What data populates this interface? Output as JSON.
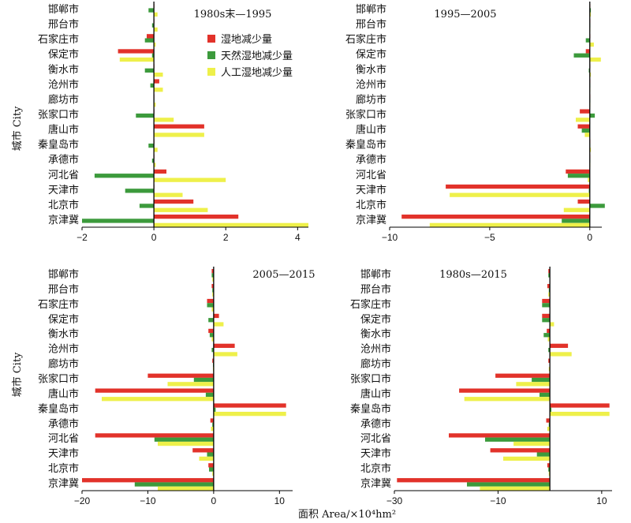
{
  "figure": {
    "ylabel": "城市 City",
    "xlabel": "面积 Area/×10⁴hm²",
    "colors": {
      "wetland": "#e2322a",
      "natural": "#3c9a3c",
      "artificial": "#eef04a"
    }
  },
  "legend": {
    "items": [
      {
        "label": "湿地减少量",
        "color": "#e2322a"
      },
      {
        "label": "天然湿地减少量",
        "color": "#3c9a3c"
      },
      {
        "label": "人工湿地减少量",
        "color": "#eef04a"
      }
    ]
  },
  "chart_data": [
    {
      "type": "bar",
      "orientation": "horizontal",
      "title": "1980s末—1995",
      "categories": [
        "邯郸市",
        "邢台市",
        "石家庄市",
        "保定市",
        "衡水市",
        "沧州市",
        "廊坊市",
        "张家口市",
        "唐山市",
        "秦皇岛市",
        "承德市",
        "河北省",
        "天津市",
        "北京市",
        "京津冀"
      ],
      "xlim": [
        -2,
        4.3
      ],
      "xticks": [
        -2,
        0,
        2,
        4
      ],
      "series": [
        {
          "name": "湿地减少量",
          "values": [
            0.0,
            0.0,
            -0.2,
            -1.0,
            0.0,
            0.15,
            0.0,
            0.0,
            1.4,
            0.0,
            0.0,
            0.35,
            0.0,
            1.1,
            2.35
          ]
        },
        {
          "name": "天然湿地减少量",
          "values": [
            -0.15,
            -0.05,
            -0.25,
            -0.05,
            -0.25,
            -0.1,
            0.0,
            -0.5,
            0.0,
            -0.15,
            -0.05,
            -1.65,
            -0.8,
            -0.4,
            -2.0
          ]
        },
        {
          "name": "人工湿地减少量",
          "values": [
            0.1,
            0.1,
            0.05,
            -0.95,
            0.25,
            0.25,
            0.05,
            0.55,
            1.4,
            0.1,
            0.05,
            2.0,
            0.8,
            1.5,
            4.3
          ]
        }
      ]
    },
    {
      "type": "bar",
      "orientation": "horizontal",
      "title": "1995—2005",
      "categories": [
        "邯郸市",
        "邢台市",
        "石家庄市",
        "保定市",
        "衡水市",
        "沧州市",
        "廊坊市",
        "张家口市",
        "唐山市",
        "秦皇岛市",
        "承德市",
        "河北省",
        "天津市",
        "北京市",
        "京津冀"
      ],
      "xlim": [
        -10,
        0.6
      ],
      "xticks": [
        -10,
        -5,
        0
      ],
      "series": [
        {
          "name": "湿地减少量",
          "values": [
            0.0,
            0.0,
            0.0,
            -0.2,
            0.0,
            0.0,
            0.0,
            -0.5,
            -0.6,
            0.0,
            0.0,
            -1.2,
            -7.2,
            -0.6,
            -9.4
          ]
        },
        {
          "name": "天然湿地减少量",
          "values": [
            0.05,
            0.0,
            -0.2,
            -0.8,
            -0.05,
            0.0,
            0.0,
            0.25,
            -0.4,
            0.0,
            0.0,
            -1.1,
            -0.05,
            0.75,
            -1.4
          ]
        },
        {
          "name": "人工湿地减少量",
          "values": [
            0.05,
            0.0,
            0.2,
            0.55,
            0.05,
            0.0,
            0.0,
            -0.7,
            -0.25,
            0.05,
            0.0,
            -0.1,
            -7.0,
            -1.3,
            -8.0
          ]
        }
      ]
    },
    {
      "type": "bar",
      "orientation": "horizontal",
      "title": "2005—2015",
      "categories": [
        "邯郸市",
        "邢台市",
        "石家庄市",
        "保定市",
        "衡水市",
        "沧州市",
        "廊坊市",
        "张家口市",
        "唐山市",
        "秦皇岛市",
        "承德市",
        "河北省",
        "天津市",
        "北京市",
        "京津冀"
      ],
      "xlim": [
        -20,
        12
      ],
      "xticks": [
        -20,
        -10,
        0,
        10
      ],
      "series": [
        {
          "name": "湿地减少量",
          "values": [
            -0.3,
            -0.3,
            -1.0,
            0.8,
            -0.8,
            3.2,
            -0.2,
            -10.0,
            -18.0,
            11.0,
            -0.5,
            -18.0,
            -3.2,
            -0.8,
            -20.0
          ]
        },
        {
          "name": "天然湿地减少量",
          "values": [
            -0.3,
            -0.2,
            -1.0,
            -0.8,
            -0.6,
            -0.3,
            -0.1,
            -3.0,
            -1.2,
            0.3,
            -0.2,
            -9.0,
            -1.0,
            -0.7,
            -12.0
          ]
        },
        {
          "name": "人工湿地减少量",
          "values": [
            -0.2,
            -0.2,
            -0.3,
            1.5,
            -0.3,
            3.6,
            -0.1,
            -7.0,
            -17.0,
            11.0,
            -0.4,
            -8.5,
            -2.2,
            -0.2,
            -8.5
          ]
        }
      ]
    },
    {
      "type": "bar",
      "orientation": "horizontal",
      "title": "1980s—2015",
      "categories": [
        "邯郸市",
        "邢台市",
        "石家庄市",
        "保定市",
        "衡水市",
        "沧州市",
        "廊坊市",
        "张家口市",
        "唐山市",
        "秦皇岛市",
        "承德市",
        "河北省",
        "天津市",
        "北京市",
        "京津冀"
      ],
      "xlim": [
        -30,
        12
      ],
      "xticks": [
        -30,
        -10,
        10
      ],
      "series": [
        {
          "name": "湿地减少量",
          "values": [
            -0.3,
            -0.5,
            -1.5,
            -1.5,
            -0.6,
            3.5,
            -0.3,
            -10.5,
            -17.5,
            11.5,
            -0.7,
            -19.5,
            -11.5,
            -0.5,
            -29.5
          ]
        },
        {
          "name": "天然湿地减少量",
          "values": [
            -0.3,
            -0.2,
            -1.5,
            -1.5,
            -1.2,
            -0.3,
            -0.1,
            -3.5,
            -2.0,
            0.3,
            -0.2,
            -12.5,
            -2.5,
            -0.3,
            -16.0
          ]
        },
        {
          "name": "人工湿地减少量",
          "values": [
            -0.1,
            -0.3,
            -0.1,
            0.8,
            -0.4,
            4.2,
            -0.2,
            -6.5,
            -16.5,
            11.5,
            -0.5,
            -7.0,
            -9.0,
            -0.2,
            -13.5
          ]
        }
      ]
    }
  ]
}
